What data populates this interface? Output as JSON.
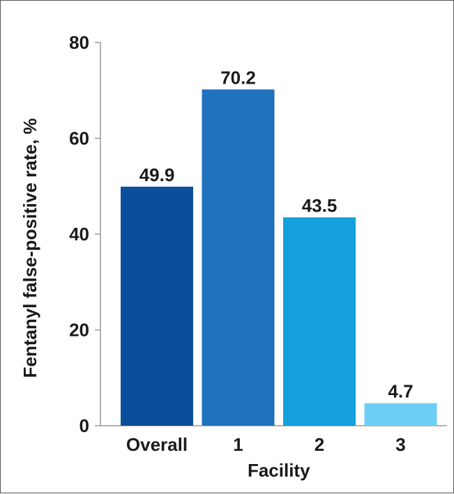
{
  "chart_data": {
    "type": "bar",
    "categories": [
      "Overall",
      "1",
      "2",
      "3"
    ],
    "values": [
      49.9,
      70.2,
      43.5,
      4.7
    ],
    "value_labels": [
      "49.9",
      "70.2",
      "43.5",
      "4.7"
    ],
    "colors": [
      "#0a4f9c",
      "#1f73bd",
      "#13a0dc",
      "#6ecdf5"
    ],
    "axis_color": "#999999",
    "title": "",
    "xlabel": "Facility",
    "ylabel": "Fentanyl false-positive rate, %",
    "ylim": [
      0,
      80
    ],
    "yticks": [
      0,
      20,
      40,
      60,
      80
    ],
    "ytick_labels": [
      "0",
      "20",
      "40",
      "60",
      "80"
    ],
    "grid": false,
    "legend": "none"
  }
}
